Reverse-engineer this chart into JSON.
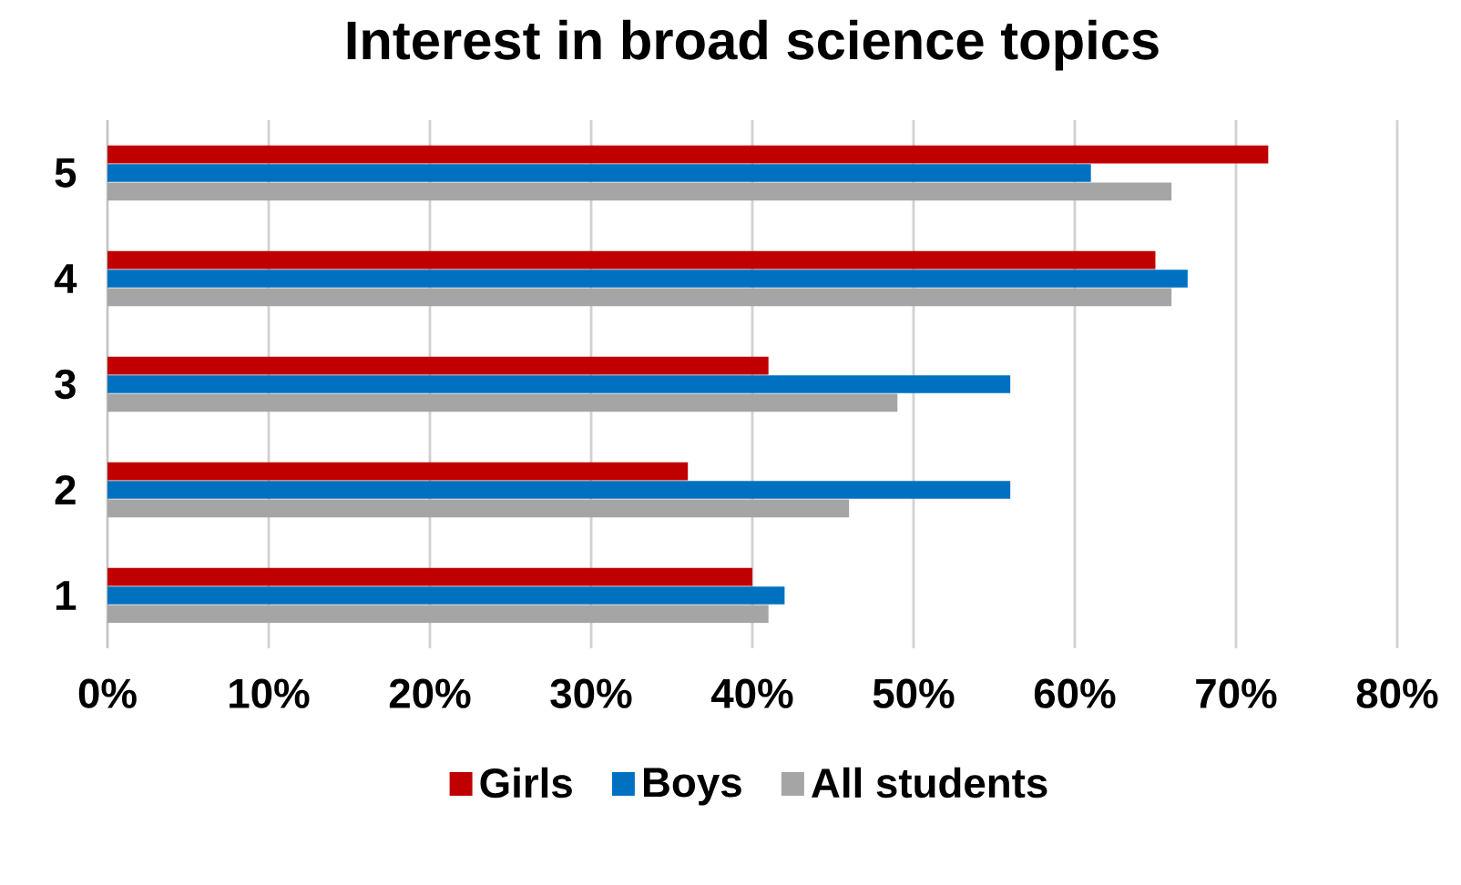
{
  "chart_data": {
    "type": "bar",
    "orientation": "horizontal",
    "title": "Interest in broad science topics",
    "categories": [
      "5",
      "4",
      "3",
      "2",
      "1"
    ],
    "series": [
      {
        "name": "Girls",
        "color": "#c00000",
        "values": [
          72,
          65,
          41,
          36,
          40
        ]
      },
      {
        "name": "Boys",
        "color": "#0070c0",
        "values": [
          61,
          67,
          56,
          56,
          42
        ]
      },
      {
        "name": "All students",
        "color": "#a5a5a5",
        "values": [
          66,
          66,
          49,
          46,
          41
        ]
      }
    ],
    "xlim": [
      0,
      80
    ],
    "xticks": [
      {
        "value": 0,
        "label": "0%"
      },
      {
        "value": 10,
        "label": "10%"
      },
      {
        "value": 20,
        "label": "20%"
      },
      {
        "value": 30,
        "label": "30%"
      },
      {
        "value": 40,
        "label": "40%"
      },
      {
        "value": 50,
        "label": "50%"
      },
      {
        "value": 60,
        "label": "60%"
      },
      {
        "value": 70,
        "label": "70%"
      },
      {
        "value": 80,
        "label": "80%"
      }
    ],
    "grid": "x",
    "legend": "bottom"
  }
}
